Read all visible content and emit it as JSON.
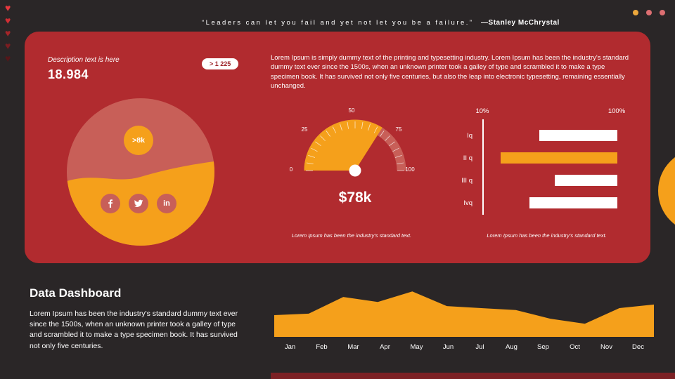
{
  "colors": {
    "background": "#2a2627",
    "panel": "#b12b2f",
    "accent_orange": "#f5a01b",
    "rose": "#c85f58",
    "bottom_strip": "#7c2125"
  },
  "decor": {
    "hearts": [
      "#e8383e",
      "#d12e34",
      "#a52529",
      "#7b1d21",
      "#561619"
    ],
    "dots": [
      "#eda83c",
      "#dd6f72",
      "#dd6f72"
    ]
  },
  "header": {
    "quote": "“Leaders can let you fail and yet not let you be a failure.”",
    "author": "—Stanley McChrystal"
  },
  "panel": {
    "stat_description": "Description text is here",
    "stat_value": "18.984",
    "badge": "> 1 225",
    "paragraph": "Lorem Ipsum is simply dummy text of the printing and typesetting industry. Lorem Ipsum has been the industry's standard dummy text ever since the 1500s, when an unknown printer took a galley of type and scrambled it to make a type specimen book. It has survived not only five centuries, but also the leap into electronic typesetting, remaining essentially unchanged.",
    "gauge_caption": "Lorem Ipsum has been the industry's standard text.",
    "bars_caption": "Lorem Ipsum has been the industry's standard text.",
    "social": [
      "facebook",
      "twitter",
      "linkedin"
    ]
  },
  "bottom": {
    "title": "Data Dashboard",
    "paragraph": "Lorem Ipsum has been the industry's standard dummy text ever since the 1500s, when an unknown printer took a galley of type and scrambled it to make a type specimen book. It has survived not only five centuries.",
    "months": [
      "Jan",
      "Feb",
      "Mar",
      "Apr",
      "May",
      "Jun",
      "Jul",
      "Aug",
      "Sep",
      "Oct",
      "Nov",
      "Dec"
    ]
  },
  "chart_data": [
    {
      "type": "pie",
      "title": "",
      "slices": [
        {
          "label": "upper",
          "value": 55,
          "color": "#c85f58"
        },
        {
          "label": "lower",
          "value": 45,
          "color": "#f5a01b"
        }
      ],
      "center_label": ">8k"
    },
    {
      "type": "gauge",
      "min": 0,
      "max": 100,
      "value": 68,
      "tick_labels": [
        "0",
        "25",
        "50",
        "75",
        "100"
      ],
      "value_label": "$78k",
      "ring_color": "#c85f58",
      "fill_color": "#f5a01b"
    },
    {
      "type": "bar",
      "orientation": "horizontal",
      "layout_hint": "bars right-aligned to 100% edge, vertical axis line at left",
      "categories": [
        "Iq",
        "II q",
        "III q",
        "Ivq"
      ],
      "values": [
        56,
        84,
        45,
        63
      ],
      "axis_min_label": "10%",
      "axis_max_label": "100%",
      "highlight_index": 1,
      "bar_colors": [
        "#ffffff",
        "#f5a01b",
        "#ffffff",
        "#ffffff"
      ]
    },
    {
      "type": "area",
      "x": [
        "Jan",
        "Feb",
        "Mar",
        "Apr",
        "May",
        "Jun",
        "Jul",
        "Aug",
        "Sep",
        "Oct",
        "Nov",
        "Dec"
      ],
      "values": [
        43,
        46,
        79,
        69,
        90,
        61,
        57,
        53,
        36,
        26,
        57,
        64
      ],
      "ylim": [
        0,
        100
      ],
      "color": "#f5a01b",
      "grid": false,
      "legend": "none"
    }
  ]
}
